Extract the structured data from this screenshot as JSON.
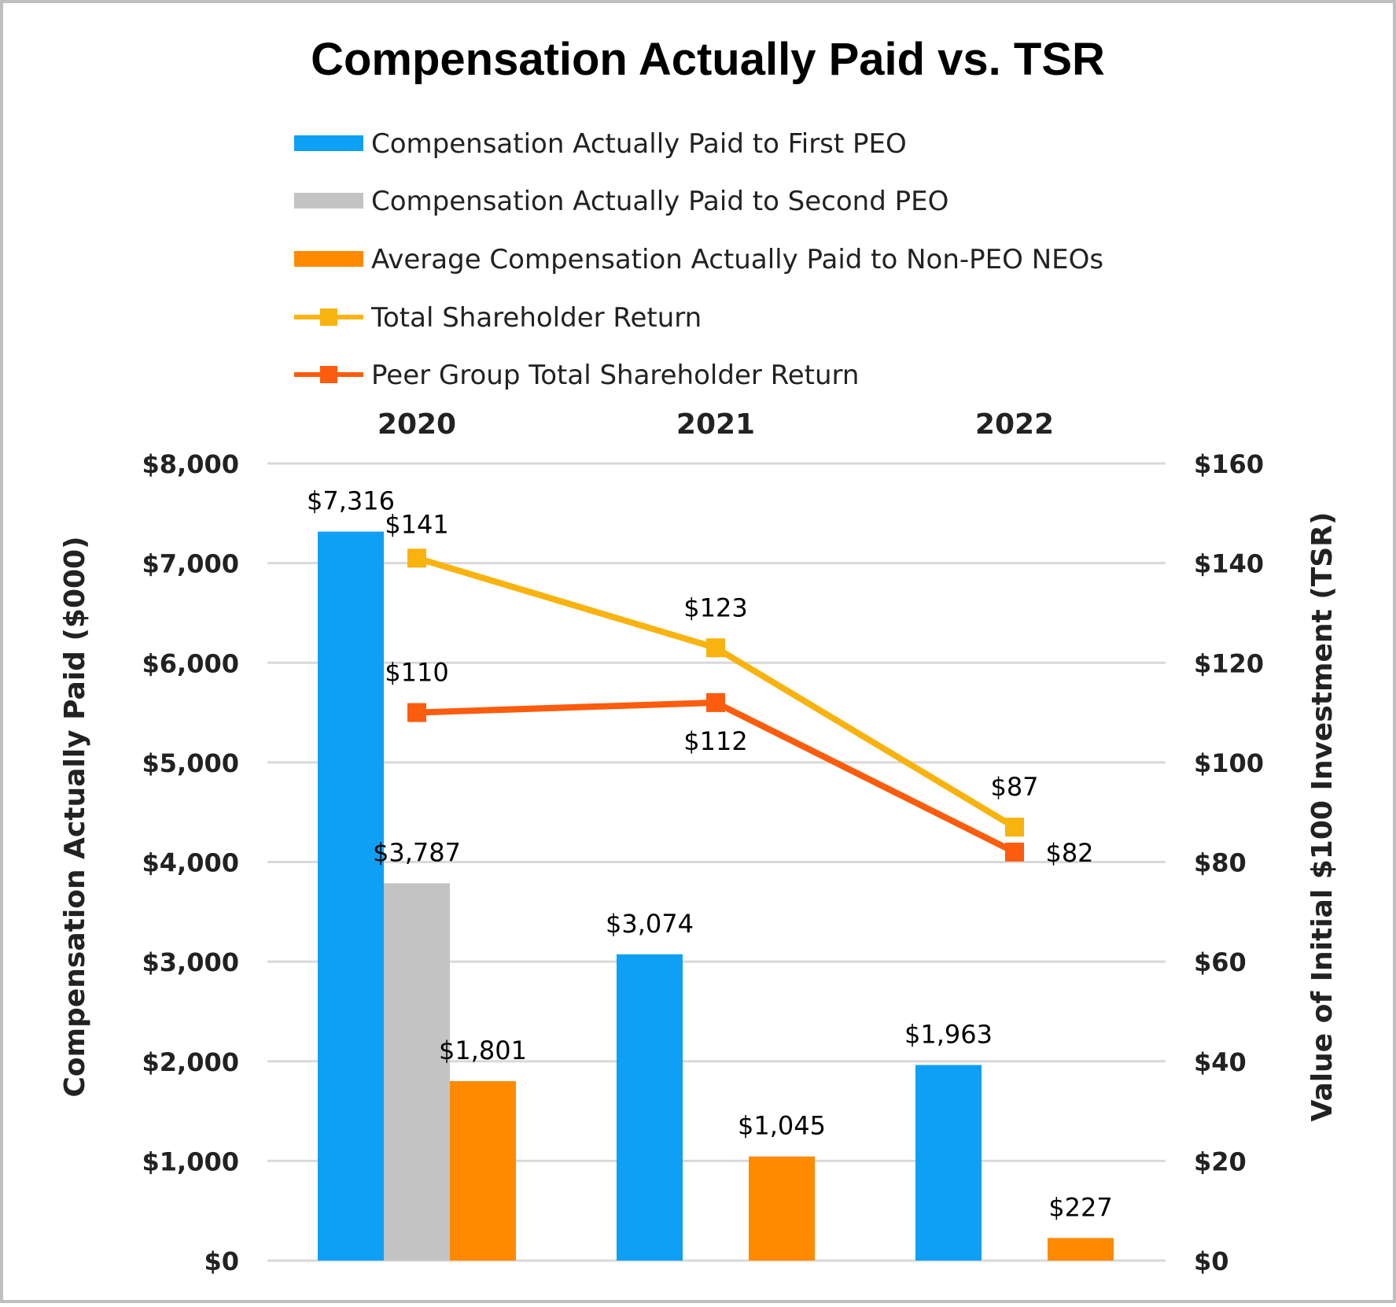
{
  "chart_data": {
    "type": "bar",
    "title": "Compensation Actually Paid vs. TSR",
    "categories": [
      "2020",
      "2021",
      "2022"
    ],
    "ylabel": "Compensation Actually Paid ($000)",
    "y2label": "Value of Initial $100 Investment (TSR)",
    "ylim": [
      0,
      8000
    ],
    "y2lim": [
      0,
      160
    ],
    "yticks": [
      "$0",
      "$1,000",
      "$2,000",
      "$3,000",
      "$4,000",
      "$5,000",
      "$6,000",
      "$7,000",
      "$8,000"
    ],
    "y2ticks": [
      "$0",
      "$20",
      "$40",
      "$60",
      "$80",
      "$100",
      "$120",
      "$140",
      "$160"
    ],
    "grid": true,
    "legend_position": "top",
    "bar_series": [
      {
        "name": "Compensation Actually Paid to First PEO",
        "color": "#0ea0f5",
        "values": [
          7316,
          3074,
          1963
        ],
        "labels": [
          "$7,316",
          "$3,074",
          "$1,963"
        ]
      },
      {
        "name": "Compensation Actually Paid to Second PEO",
        "color": "#c3c3c3",
        "values": [
          3787,
          null,
          null
        ],
        "labels": [
          "$3,787",
          "",
          ""
        ]
      },
      {
        "name": "Average Compensation Actually Paid to Non-PEO NEOs",
        "color": "#ff8a00",
        "values": [
          1801,
          1045,
          227
        ],
        "labels": [
          "$1,801",
          "$1,045",
          "$227"
        ]
      }
    ],
    "line_series": [
      {
        "name": "Total Shareholder Return",
        "color": "#f9b30f",
        "values": [
          141,
          123,
          87
        ],
        "labels": [
          "$141",
          "$123",
          "$87"
        ]
      },
      {
        "name": "Peer Group Total Shareholder Return",
        "color": "#fc5c0d",
        "values": [
          110,
          112,
          82
        ],
        "labels": [
          "$110",
          "$112",
          "$82"
        ]
      }
    ]
  }
}
